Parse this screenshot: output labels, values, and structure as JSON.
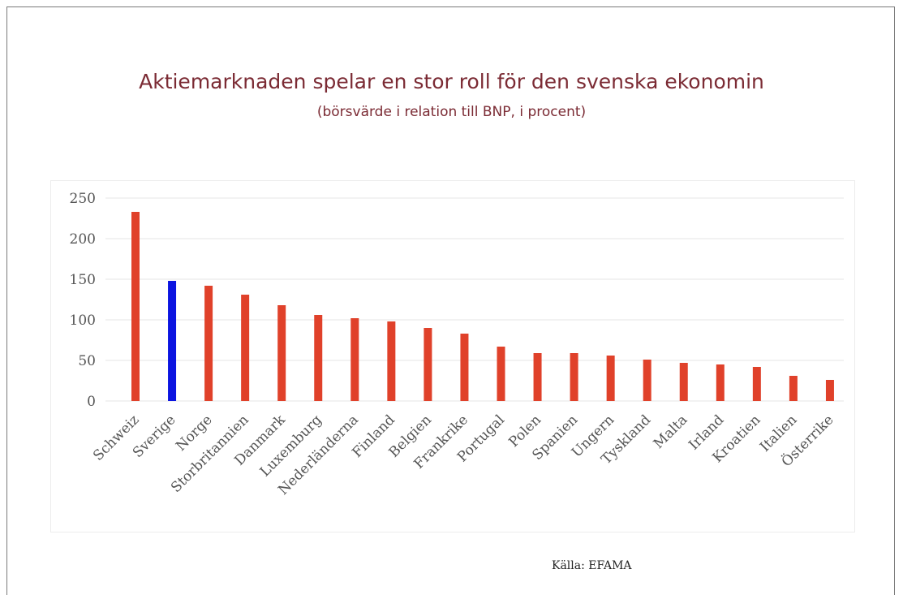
{
  "title": "Aktiemarknaden spelar en stor roll för den svenska ekonomin",
  "subtitle": "(börsvärde i relation till BNP, i procent)",
  "source": "Källa: EFAMA",
  "colors": {
    "default_bar": "#e0412a",
    "highlight_bar": "#0b14e0",
    "title": "#7b2b34",
    "grid": "#e4e4e4"
  },
  "chart_data": {
    "type": "bar",
    "categories": [
      "Schweiz",
      "Sverige",
      "Norge",
      "Storbritannien",
      "Danmark",
      "Luxemburg",
      "Nederländerna",
      "Finland",
      "Belgien",
      "Frankrike",
      "Portugal",
      "Polen",
      "Spanien",
      "Ungern",
      "Tyskland",
      "Malta",
      "Irland",
      "Kroatien",
      "Italien",
      "Österrike"
    ],
    "values": [
      233,
      148,
      142,
      131,
      118,
      106,
      102,
      98,
      90,
      83,
      67,
      59,
      59,
      56,
      51,
      47,
      45,
      42,
      31,
      26
    ],
    "highlight": "Sverige",
    "ylim": [
      0,
      250
    ],
    "yticks": [
      0,
      50,
      100,
      150,
      200,
      250
    ],
    "grid": true,
    "legend": "none"
  }
}
